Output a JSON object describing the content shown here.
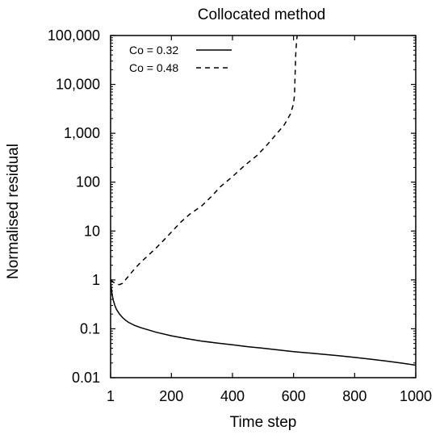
{
  "chart_data": {
    "type": "line",
    "title": "Collocated method",
    "xlabel": "Time step",
    "ylabel": "Normalised residual",
    "xlim": [
      1,
      1000
    ],
    "ylim": [
      0.01,
      100000
    ],
    "yscale": "log",
    "grid": false,
    "legend_position": "top-left",
    "x_ticks": [
      {
        "value": 1,
        "label": "1"
      },
      {
        "value": 200,
        "label": "200"
      },
      {
        "value": 400,
        "label": "400"
      },
      {
        "value": 600,
        "label": "600"
      },
      {
        "value": 800,
        "label": "800"
      },
      {
        "value": 1000,
        "label": "1000"
      }
    ],
    "y_ticks": [
      {
        "value": 0.01,
        "label": "0.01"
      },
      {
        "value": 0.1,
        "label": "0.1"
      },
      {
        "value": 1,
        "label": "1"
      },
      {
        "value": 10,
        "label": "10"
      },
      {
        "value": 100,
        "label": "100"
      },
      {
        "value": 1000,
        "label": "1,000"
      },
      {
        "value": 10000,
        "label": "10,000"
      },
      {
        "value": 100000,
        "label": "100,000"
      }
    ],
    "series": [
      {
        "name": "Co = 0.32",
        "line_style": "solid",
        "color": "#000000",
        "x": [
          1,
          3,
          6,
          10,
          15,
          20,
          30,
          40,
          50,
          60,
          80,
          100,
          150,
          200,
          250,
          300,
          350,
          400,
          450,
          500,
          550,
          600,
          650,
          700,
          750,
          800,
          850,
          900,
          950,
          1000
        ],
        "y": [
          1.0,
          0.7,
          0.5,
          0.38,
          0.3,
          0.25,
          0.2,
          0.17,
          0.15,
          0.135,
          0.117,
          0.105,
          0.085,
          0.072,
          0.063,
          0.056,
          0.051,
          0.047,
          0.043,
          0.04,
          0.037,
          0.034,
          0.032,
          0.03,
          0.028,
          0.026,
          0.024,
          0.022,
          0.02,
          0.018
        ]
      },
      {
        "name": "Co = 0.48",
        "line_style": "dashed",
        "color": "#000000",
        "x": [
          1,
          10,
          20,
          30,
          40,
          60,
          80,
          100,
          120,
          150,
          180,
          200,
          230,
          260,
          300,
          330,
          360,
          400,
          440,
          480,
          510,
          540,
          570,
          590,
          600,
          603,
          605,
          607,
          610,
          612
        ],
        "y": [
          1.0,
          0.9,
          0.82,
          0.8,
          0.85,
          1.2,
          1.7,
          2.3,
          3.0,
          4.5,
          7.0,
          9.5,
          15,
          22,
          33,
          50,
          80,
          130,
          220,
          350,
          550,
          900,
          1500,
          2500,
          4000,
          6000,
          15000,
          40000,
          80000,
          100000
        ]
      }
    ]
  }
}
